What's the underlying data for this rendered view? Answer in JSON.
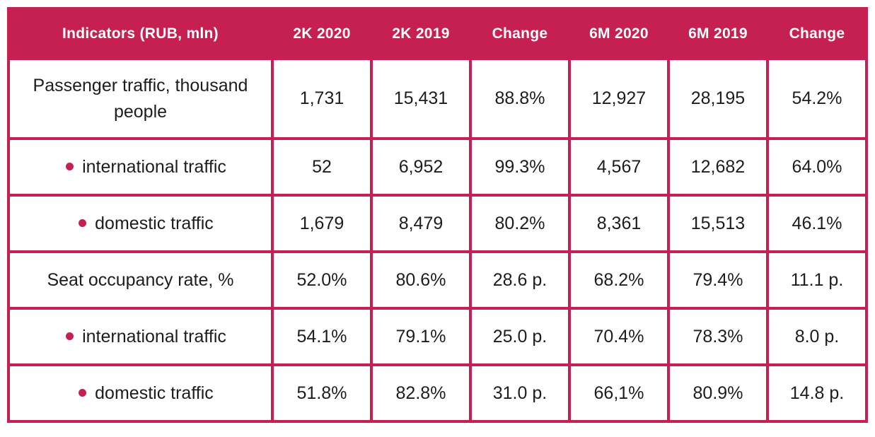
{
  "colors": {
    "accent": "#c62053",
    "header_text": "#ffffff",
    "body_text": "#1d1d1b",
    "background": "#ffffff"
  },
  "table": {
    "header": {
      "indicators": "Indicators (RUB, mln)",
      "q2_2020": "2K 2020",
      "q2_2019": "2K 2019",
      "change_q": "Change",
      "h1_2020": "6M 2020",
      "h1_2019": "6M 2019",
      "change_h": "Change"
    },
    "rows": [
      {
        "label": "Passenger traffic, thousand people",
        "bullet": false,
        "values": [
          "1,731",
          "15,431",
          "88.8%",
          "12,927",
          "28,195",
          "54.2%"
        ]
      },
      {
        "label": "international traffic",
        "bullet": true,
        "values": [
          "52",
          "6,952",
          "99.3%",
          "4,567",
          "12,682",
          "64.0%"
        ]
      },
      {
        "label": "domestic traffic",
        "bullet": true,
        "values": [
          "1,679",
          "8,479",
          "80.2%",
          "8,361",
          "15,513",
          "46.1%"
        ]
      },
      {
        "label": "Seat occupancy rate, %",
        "bullet": false,
        "values": [
          "52.0%",
          "80.6%",
          "28.6 p.",
          "68.2%",
          "79.4%",
          "11.1 p."
        ]
      },
      {
        "label": "international traffic",
        "bullet": true,
        "values": [
          "54.1%",
          "79.1%",
          "25.0 p.",
          "70.4%",
          "78.3%",
          "8.0 p."
        ]
      },
      {
        "label": "domestic traffic",
        "bullet": true,
        "values": [
          "51.8%",
          "82.8%",
          "31.0 p.",
          "66,1%",
          "80.9%",
          "14.8 p."
        ]
      }
    ]
  },
  "chart_data": {
    "type": "table",
    "title": "Indicators (RUB, mln)",
    "columns": [
      "Indicators (RUB, mln)",
      "2K 2020",
      "2K 2019",
      "Change",
      "6M 2020",
      "6M 2019",
      "Change"
    ],
    "rows": [
      [
        "Passenger traffic, thousand people",
        "1,731",
        "15,431",
        "88.8%",
        "12,927",
        "28,195",
        "54.2%"
      ],
      [
        "international traffic",
        "52",
        "6,952",
        "99.3%",
        "4,567",
        "12,682",
        "64.0%"
      ],
      [
        "domestic traffic",
        "1,679",
        "8,479",
        "80.2%",
        "8,361",
        "15,513",
        "46.1%"
      ],
      [
        "Seat occupancy rate, %",
        "52.0%",
        "80.6%",
        "28.6 p.",
        "68.2%",
        "79.4%",
        "11.1 p."
      ],
      [
        "international traffic",
        "54.1%",
        "79.1%",
        "25.0 p.",
        "70.4%",
        "78.3%",
        "8.0 p."
      ],
      [
        "domestic traffic",
        "51.8%",
        "82.8%",
        "31.0 p.",
        "66,1%",
        "80.9%",
        "14.8 p."
      ]
    ]
  }
}
